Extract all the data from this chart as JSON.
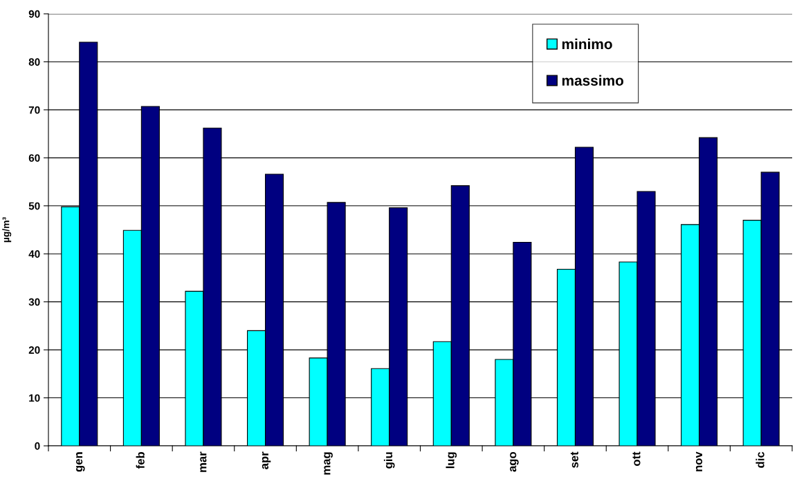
{
  "chart_data": {
    "type": "bar",
    "ylabel": "µg/m³",
    "categories": [
      "gen",
      "feb",
      "mar",
      "apr",
      "mag",
      "giu",
      "lug",
      "ago",
      "set",
      "ott",
      "nov",
      "dic"
    ],
    "series": [
      {
        "name": "minimo",
        "color": "#00ffff",
        "values": [
          49.8,
          44.9,
          32.2,
          24.0,
          18.3,
          16.1,
          21.7,
          18.0,
          36.8,
          38.3,
          46.1,
          47.0
        ]
      },
      {
        "name": "massimo",
        "color": "#000080",
        "values": [
          84.1,
          70.7,
          66.2,
          56.6,
          50.7,
          49.6,
          54.2,
          42.4,
          62.2,
          53.0,
          64.2,
          57.0
        ]
      }
    ],
    "ylim": [
      0,
      90
    ],
    "yticks": [
      0,
      10,
      20,
      30,
      40,
      50,
      60,
      70,
      80,
      90
    ],
    "grid": "y",
    "legend": "top right"
  }
}
